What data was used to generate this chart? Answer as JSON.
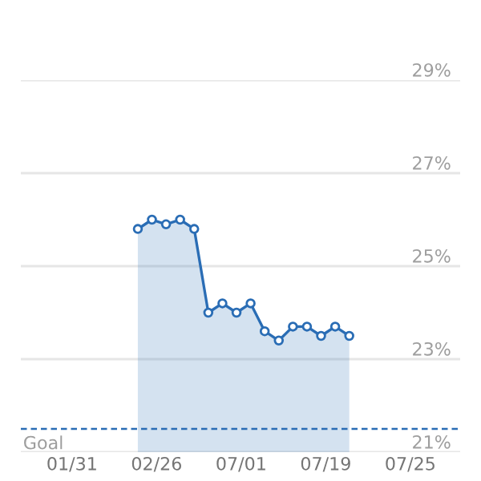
{
  "chart_data": {
    "type": "area",
    "categories": [
      "01/31",
      null,
      null,
      null,
      null,
      null,
      null,
      null,
      null,
      null,
      null,
      null,
      null,
      null,
      null,
      null,
      null,
      null,
      "02/26",
      null,
      null,
      null,
      null,
      null,
      null,
      null,
      null,
      null,
      null,
      null,
      null,
      null,
      null,
      null,
      null,
      null,
      "07/01",
      null,
      null,
      null,
      null,
      null,
      null,
      null,
      null,
      null,
      null,
      null,
      null,
      null,
      null,
      null,
      null,
      null,
      "07/19",
      null,
      null,
      null,
      null,
      null,
      null,
      null,
      null,
      null,
      null,
      null,
      null,
      null,
      null,
      null,
      null,
      null,
      "07/25"
    ],
    "series": [
      {
        "color": "#2a6db5",
        "values": [
          null,
          null,
          null,
          null,
          null,
          null,
          null,
          null,
          null,
          null,
          null,
          null,
          null,
          null,
          25.8,
          null,
          null,
          26.0,
          null,
          null,
          25.9,
          null,
          null,
          26.0,
          null,
          null,
          25.8,
          null,
          null,
          24.0,
          null,
          null,
          24.2,
          null,
          null,
          24.0,
          null,
          null,
          24.2,
          null,
          null,
          23.6,
          null,
          null,
          23.4,
          null,
          null,
          23.7,
          null,
          null,
          23.7,
          null,
          null,
          23.5,
          null,
          null,
          23.7,
          null,
          null,
          23.5,
          null,
          null,
          null,
          null,
          null,
          null,
          null,
          null,
          null,
          null,
          null,
          null,
          null
        ]
      }
    ],
    "ylim": [
      21,
      29
    ],
    "yticks": [
      {
        "value": 21,
        "label": "21%"
      },
      {
        "value": 23,
        "label": "23%"
      },
      {
        "value": 25,
        "label": "25%"
      },
      {
        "value": 27,
        "label": "27%"
      },
      {
        "value": 29,
        "label": "29%"
      }
    ],
    "ref_lines": [
      {
        "axis": "y",
        "value": 21.5,
        "label": "Goal",
        "color": "#2a6db5",
        "line_style": "dashed"
      }
    ],
    "grid": "y",
    "marker": "circle",
    "line_style": "solid",
    "legend": false
  }
}
